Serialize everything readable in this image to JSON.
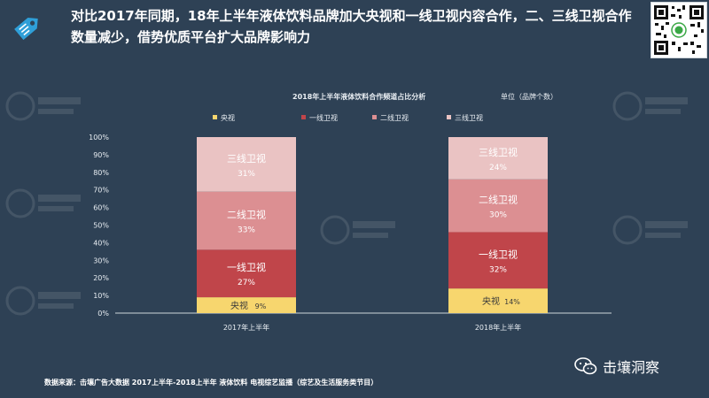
{
  "header": {
    "headline_line1": "对比2017年同期，18年上半年液体饮料品牌加大央视和一线卫视内容合作，二、三线卫视合作",
    "headline_line2": "数量减少，借势优质平台扩大品牌影响力"
  },
  "chart_header": {
    "title": "2018年上半年液体饮料合作频道占比分析",
    "unit": "单位（品牌个数）"
  },
  "source_note": "数据来源：击壤广告大数据 2017上半年-2018上半年 液体饮料 电视综艺监播（综艺及生活服务类节目）",
  "brand": {
    "name": "击壤洞察",
    "icon": "wechat-icon"
  },
  "chart_data": {
    "type": "bar",
    "stacked": true,
    "categories": [
      "2017年上半年",
      "2018年上半年"
    ],
    "series": [
      {
        "name": "央视",
        "values": [
          9,
          14
        ],
        "color": "#f7d66e",
        "labels": [
          "9%",
          "14%"
        ]
      },
      {
        "name": "一线卫视",
        "values": [
          27,
          32
        ],
        "color": "#c0454a",
        "labels": [
          "27%",
          "32%"
        ]
      },
      {
        "name": "二线卫视",
        "values": [
          33,
          30
        ],
        "color": "#dc8f92",
        "labels": [
          "33%",
          "30%"
        ]
      },
      {
        "name": "三线卫视",
        "values": [
          31,
          24
        ],
        "color": "#eac3c3",
        "labels": [
          "31%",
          "24%"
        ]
      }
    ],
    "ylim": [
      0,
      100
    ],
    "yticks": [
      "0%",
      "10%",
      "20%",
      "30%",
      "40%",
      "50%",
      "60%",
      "70%",
      "80%",
      "90%",
      "100%"
    ],
    "legend_position": "top",
    "grid": false
  }
}
